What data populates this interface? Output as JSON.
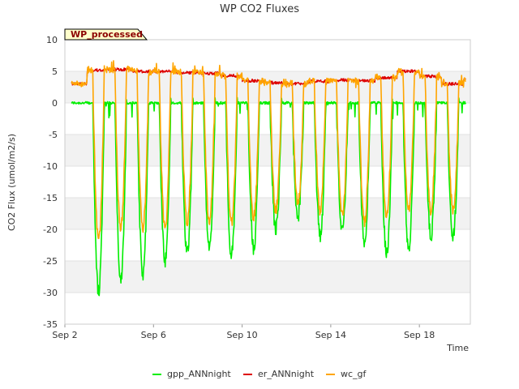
{
  "chart_data": {
    "type": "line",
    "title": "WP CO2 Fluxes",
    "xlabel": "Time",
    "ylabel": "CO2 Flux (umol/m2/s)",
    "badge": "WP_processed",
    "x_unit": "day of September",
    "xlim": [
      2,
      20.3
    ],
    "ylim": [
      -35,
      10
    ],
    "y_ticks": [
      10,
      5,
      0,
      -5,
      -10,
      -15,
      -20,
      -25,
      -30,
      -35
    ],
    "x_ticks": [
      {
        "value": 2,
        "label": "Sep 2"
      },
      {
        "value": 6,
        "label": "Sep 6"
      },
      {
        "value": 10,
        "label": "Sep 10"
      },
      {
        "value": 14,
        "label": "Sep 14"
      },
      {
        "value": 18,
        "label": "Sep 18"
      }
    ],
    "grid": "alternating horizontal bands",
    "legend_position": "bottom-center",
    "series": [
      {
        "name": "gpp_ANNnight",
        "color": "#00ee00",
        "daily_daytime_minimum": [
          -30,
          -28,
          -27,
          -25,
          -24,
          -23,
          -24,
          -23,
          -20,
          -18,
          -21,
          -20,
          -22,
          -24,
          -23,
          -21,
          -21
        ],
        "night_value": 0
      },
      {
        "name": "er_ANNnight",
        "color": "#dd0000",
        "daily_mean": [
          3.0,
          5.2,
          5.3,
          5.0,
          5.0,
          4.8,
          4.7,
          4.3,
          3.5,
          3.2,
          3.0,
          3.4,
          3.6,
          3.5,
          4.0,
          5.0,
          4.2,
          3.0,
          3.8
        ]
      },
      {
        "name": "wc_gf",
        "color": "#ffa500",
        "daily_daytime_minimum": [
          -22,
          -20,
          -20,
          -20,
          -19,
          -19,
          -19,
          -18,
          -17,
          -16,
          -17,
          -18,
          -19,
          -18,
          -17,
          -17,
          -17
        ],
        "night_value": 5
      }
    ],
    "legend": [
      {
        "label": "gpp_ANNnight",
        "color": "#00ee00"
      },
      {
        "label": "er_ANNnight",
        "color": "#dd0000"
      },
      {
        "label": "wc_gf",
        "color": "#ffa500"
      }
    ]
  }
}
